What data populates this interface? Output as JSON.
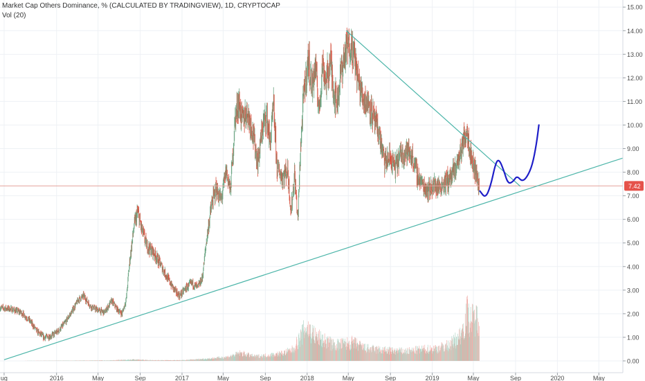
{
  "header": {
    "title": "Market Cap Others Dominance, % (CALCULATED BY TRADINGVIEW), 1D, CRYPTOCAP",
    "indicator": "Vol (20)"
  },
  "colors": {
    "candle_up": "#6ba583",
    "candle_down": "#d75442",
    "vol_up": "#a9d0c0",
    "vol_down": "#efa8a2",
    "trendline": "#4cb5a9",
    "projection": "#1e1ec8",
    "last_price_line": "#e5a39c",
    "last_price_badge": "#e5524a",
    "grid": "#eef1f5",
    "axis_text": "#4a4a4a"
  },
  "chart_data": {
    "type": "candlestick",
    "title": "Market Cap Others Dominance, % (CALCULATED BY TRADINGVIEW), 1D, CRYPTOCAP",
    "ylabel": "",
    "yaxis_position": "right",
    "ylim": [
      -0.5,
      15.3
    ],
    "yticks": [
      "15.00",
      "14.00",
      "13.00",
      "12.00",
      "11.00",
      "10.00",
      "9.00",
      "8.00",
      "7.00",
      "6.00",
      "5.00",
      "4.00",
      "3.00",
      "2.00",
      "1.00",
      "0.00"
    ],
    "ytick_values": [
      15,
      14,
      13,
      12,
      11,
      10,
      9,
      8,
      7,
      6,
      5,
      4,
      3,
      2,
      1,
      0
    ],
    "xlim": [
      "2015-07-20",
      "2020-07-10"
    ],
    "xticks": [
      {
        "label": "ug",
        "date": "2015-08-01"
      },
      {
        "label": "2016",
        "date": "2016-01-01"
      },
      {
        "label": "May",
        "date": "2016-05-01"
      },
      {
        "label": "Sep",
        "date": "2016-09-01"
      },
      {
        "label": "2017",
        "date": "2017-01-01"
      },
      {
        "label": "May",
        "date": "2017-05-01"
      },
      {
        "label": "Sep",
        "date": "2017-09-01"
      },
      {
        "label": "2018",
        "date": "2018-01-01"
      },
      {
        "label": "May",
        "date": "2018-05-01"
      },
      {
        "label": "Sep",
        "date": "2018-09-01"
      },
      {
        "label": "2019",
        "date": "2019-01-01"
      },
      {
        "label": "May",
        "date": "2019-05-01"
      },
      {
        "label": "Sep",
        "date": "2019-09-01"
      },
      {
        "label": "2020",
        "date": "2020-01-01"
      },
      {
        "label": "May",
        "date": "2020-05-01"
      }
    ],
    "last_price": {
      "label": "7.42",
      "value": 7.42
    },
    "price_path": [
      [
        "2015-07-20",
        2.25
      ],
      [
        "2015-08-20",
        2.2
      ],
      [
        "2015-09-20",
        2.05
      ],
      [
        "2015-10-15",
        1.7
      ],
      [
        "2015-11-05",
        1.25
      ],
      [
        "2015-11-25",
        1.0
      ],
      [
        "2015-12-15",
        1.05
      ],
      [
        "2016-01-05",
        1.25
      ],
      [
        "2016-01-25",
        1.6
      ],
      [
        "2016-02-15",
        2.1
      ],
      [
        "2016-03-05",
        2.6
      ],
      [
        "2016-03-20",
        2.75
      ],
      [
        "2016-04-10",
        2.3
      ],
      [
        "2016-05-01",
        2.15
      ],
      [
        "2016-05-20",
        2.05
      ],
      [
        "2016-06-10",
        2.55
      ],
      [
        "2016-06-25",
        2.2
      ],
      [
        "2016-07-10",
        2.0
      ],
      [
        "2016-07-22",
        2.6
      ],
      [
        "2016-08-01",
        4.2
      ],
      [
        "2016-08-15",
        5.8
      ],
      [
        "2016-08-25",
        6.3
      ],
      [
        "2016-09-05",
        5.6
      ],
      [
        "2016-09-20",
        4.9
      ],
      [
        "2016-10-10",
        4.6
      ],
      [
        "2016-10-30",
        4.1
      ],
      [
        "2016-11-20",
        3.5
      ],
      [
        "2016-12-10",
        3.0
      ],
      [
        "2016-12-25",
        2.75
      ],
      [
        "2017-01-10",
        3.05
      ],
      [
        "2017-01-30",
        3.3
      ],
      [
        "2017-02-15",
        3.1
      ],
      [
        "2017-03-01",
        3.5
      ],
      [
        "2017-03-15",
        5.3
      ],
      [
        "2017-03-28",
        6.6
      ],
      [
        "2017-04-10",
        7.3
      ],
      [
        "2017-04-25",
        6.8
      ],
      [
        "2017-05-10",
        8.1
      ],
      [
        "2017-05-22",
        7.2
      ],
      [
        "2017-06-05",
        10.3
      ],
      [
        "2017-06-15",
        11.0
      ],
      [
        "2017-06-25",
        10.2
      ],
      [
        "2017-07-10",
        10.6
      ],
      [
        "2017-07-25",
        9.8
      ],
      [
        "2017-08-10",
        8.4
      ],
      [
        "2017-08-25",
        10.0
      ],
      [
        "2017-09-05",
        10.4
      ],
      [
        "2017-09-15",
        9.2
      ],
      [
        "2017-09-25",
        10.8
      ],
      [
        "2017-10-05",
        8.2
      ],
      [
        "2017-10-20",
        7.8
      ],
      [
        "2017-11-05",
        8.1
      ],
      [
        "2017-11-15",
        6.3
      ],
      [
        "2017-11-25",
        7.9
      ],
      [
        "2017-12-05",
        6.0
      ],
      [
        "2017-12-12",
        8.8
      ],
      [
        "2017-12-22",
        11.3
      ],
      [
        "2018-01-05",
        12.8
      ],
      [
        "2018-01-15",
        11.6
      ],
      [
        "2018-01-25",
        12.5
      ],
      [
        "2018-02-05",
        10.6
      ],
      [
        "2018-02-15",
        12.6
      ],
      [
        "2018-02-25",
        11.8
      ],
      [
        "2018-03-10",
        12.7
      ],
      [
        "2018-03-20",
        11.4
      ],
      [
        "2018-03-30",
        11.0
      ],
      [
        "2018-04-10",
        12.3
      ],
      [
        "2018-04-25",
        13.2
      ],
      [
        "2018-05-08",
        13.5
      ],
      [
        "2018-05-20",
        12.8
      ],
      [
        "2018-06-01",
        11.7
      ],
      [
        "2018-06-15",
        11.1
      ],
      [
        "2018-07-01",
        10.9
      ],
      [
        "2018-07-15",
        10.2
      ],
      [
        "2018-07-30",
        9.6
      ],
      [
        "2018-08-15",
        8.4
      ],
      [
        "2018-08-30",
        8.6
      ],
      [
        "2018-09-15",
        8.2
      ],
      [
        "2018-10-01",
        8.75
      ],
      [
        "2018-10-20",
        8.9
      ],
      [
        "2018-11-05",
        8.6
      ],
      [
        "2018-11-20",
        7.8
      ],
      [
        "2018-12-05",
        7.45
      ],
      [
        "2018-12-20",
        7.25
      ],
      [
        "2019-01-05",
        7.45
      ],
      [
        "2019-01-20",
        7.35
      ],
      [
        "2019-02-05",
        7.55
      ],
      [
        "2019-02-20",
        7.7
      ],
      [
        "2019-03-05",
        8.0
      ],
      [
        "2019-03-20",
        8.6
      ],
      [
        "2019-04-05",
        9.5
      ],
      [
        "2019-04-12",
        9.85
      ],
      [
        "2019-04-25",
        8.6
      ],
      [
        "2019-05-08",
        8.0
      ],
      [
        "2019-05-18",
        7.42
      ]
    ],
    "volume_path": [
      [
        "2015-07-20",
        0.0
      ],
      [
        "2016-06-01",
        0.02
      ],
      [
        "2016-08-15",
        0.06
      ],
      [
        "2016-10-01",
        0.03
      ],
      [
        "2017-01-01",
        0.03
      ],
      [
        "2017-03-20",
        0.1
      ],
      [
        "2017-05-15",
        0.18
      ],
      [
        "2017-06-20",
        0.35
      ],
      [
        "2017-08-01",
        0.2
      ],
      [
        "2017-09-10",
        0.25
      ],
      [
        "2017-10-25",
        0.35
      ],
      [
        "2017-11-20",
        0.5
      ],
      [
        "2017-12-15",
        1.1
      ],
      [
        "2017-12-28",
        1.5
      ],
      [
        "2018-01-08",
        1.35
      ],
      [
        "2018-01-25",
        1.1
      ],
      [
        "2018-02-20",
        0.9
      ],
      [
        "2018-03-20",
        0.7
      ],
      [
        "2018-04-20",
        0.75
      ],
      [
        "2018-05-15",
        0.8
      ],
      [
        "2018-06-20",
        0.55
      ],
      [
        "2018-07-20",
        0.5
      ],
      [
        "2018-09-01",
        0.45
      ],
      [
        "2018-10-15",
        0.42
      ],
      [
        "2018-12-01",
        0.5
      ],
      [
        "2019-01-15",
        0.55
      ],
      [
        "2019-02-20",
        0.7
      ],
      [
        "2019-03-20",
        1.05
      ],
      [
        "2019-04-05",
        1.6
      ],
      [
        "2019-04-12",
        2.2
      ],
      [
        "2019-04-20",
        1.8
      ],
      [
        "2019-05-18",
        1.9
      ]
    ],
    "annotations": [
      {
        "type": "trendline",
        "name": "descending-resistance",
        "points": [
          [
            "2018-04-25",
            14.0
          ],
          [
            "2019-09-15",
            7.4
          ]
        ]
      },
      {
        "type": "trendline",
        "name": "ascending-support",
        "points": [
          [
            "2015-08-01",
            0.05
          ],
          [
            "2020-07-10",
            8.6
          ]
        ]
      },
      {
        "type": "projection",
        "name": "forecast-path",
        "points": [
          [
            "2019-05-20",
            7.2
          ],
          [
            "2019-06-05",
            6.9
          ],
          [
            "2019-06-20",
            7.4
          ],
          [
            "2019-07-05",
            8.4
          ],
          [
            "2019-07-15",
            8.55
          ],
          [
            "2019-07-28",
            8.1
          ],
          [
            "2019-08-10",
            7.5
          ],
          [
            "2019-08-25",
            7.6
          ],
          [
            "2019-09-05",
            7.85
          ],
          [
            "2019-09-20",
            7.6
          ],
          [
            "2019-10-05",
            7.8
          ],
          [
            "2019-10-20",
            8.3
          ],
          [
            "2019-11-01",
            9.2
          ],
          [
            "2019-11-08",
            10.0
          ]
        ]
      }
    ]
  }
}
